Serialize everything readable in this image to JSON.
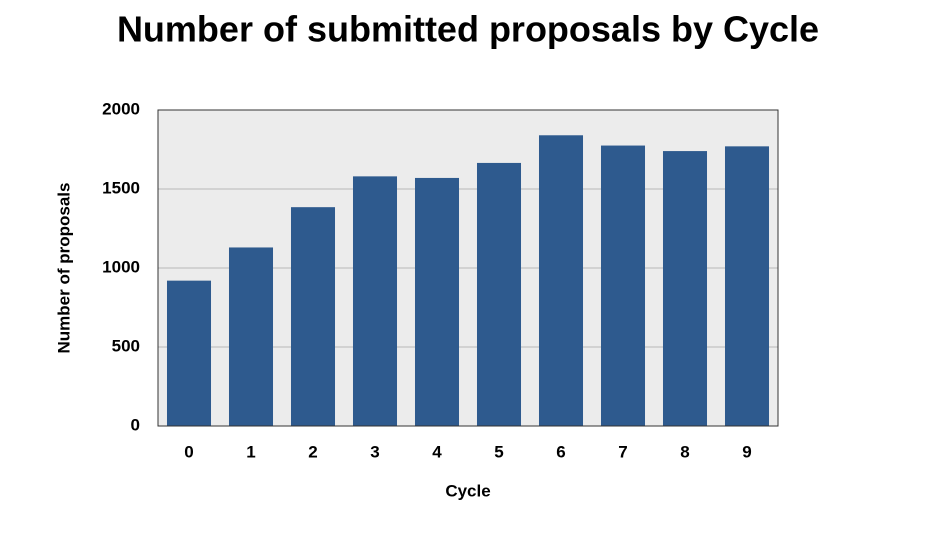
{
  "chart_data": {
    "type": "bar",
    "title": "Number of submitted proposals by Cycle",
    "x_label": "Cycle",
    "y_label": "Number of proposals",
    "categories": [
      "0",
      "1",
      "2",
      "3",
      "4",
      "5",
      "6",
      "7",
      "8",
      "9"
    ],
    "values": [
      920,
      1130,
      1385,
      1580,
      1570,
      1665,
      1840,
      1775,
      1740,
      1770
    ],
    "color": "#2e5a8e",
    "ylim": [
      0,
      2000
    ],
    "yticks": [
      0,
      500,
      1000,
      1500,
      2000
    ],
    "grid": true
  }
}
